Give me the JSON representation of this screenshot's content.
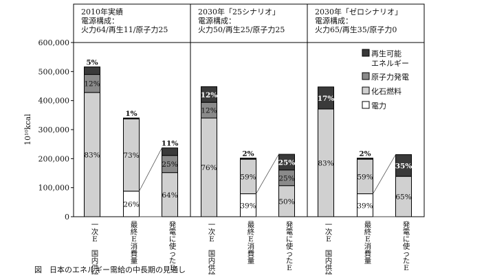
{
  "chart_data": {
    "type": "bar",
    "stacked": true,
    "ylabel": "10¹⁰kcal",
    "ylim": [
      0,
      600000
    ],
    "yticks": [
      0,
      100000,
      200000,
      300000,
      400000,
      500000,
      600000
    ],
    "ytick_labels": [
      "0",
      "100,000",
      "200,000",
      "300,000",
      "400,000",
      "500,000",
      "600,000"
    ],
    "legend_position": "top-right",
    "legend": [
      {
        "key": "renewable",
        "label_lines": [
          "再生可能",
          "エネルギー"
        ],
        "color": "#3a3a3a"
      },
      {
        "key": "nuclear",
        "label_lines": [
          "原子力発電"
        ],
        "color": "#8a8a8a"
      },
      {
        "key": "fossil",
        "label_lines": [
          "化石燃料"
        ],
        "color": "#d0d0d0"
      },
      {
        "key": "electricity",
        "label_lines": [
          "電力"
        ],
        "color": "#ffffff"
      }
    ],
    "categories": [
      "一次E国内供給",
      "最終E消費量",
      "発電に使ったE"
    ],
    "category_labels": [
      [
        "一",
        "次",
        "E",
        "",
        "国",
        "内",
        "供",
        "給"
      ],
      [
        "最",
        "終",
        "E",
        "消",
        "費",
        "量"
      ],
      [
        "発",
        "電",
        "に",
        "使",
        "っ",
        "た",
        "E"
      ]
    ],
    "scenarios": [
      {
        "header_lines": [
          "2010年実績",
          "電源構成：",
          "火力64/再生11/原子力25"
        ],
        "bars": [
          {
            "segments": [
              {
                "key": "fossil",
                "value": 428000,
                "label": "83%"
              },
              {
                "key": "nuclear",
                "value": 62000,
                "label": "12%"
              },
              {
                "key": "renewable",
                "value": 26000,
                "label": "5%"
              }
            ]
          },
          {
            "segments": [
              {
                "key": "electricity",
                "value": 88000,
                "label": "26%"
              },
              {
                "key": "fossil",
                "value": 249000,
                "label": "73%"
              },
              {
                "key": "renewable",
                "value": 3000,
                "label": "1%"
              }
            ]
          },
          {
            "segments": [
              {
                "key": "fossil",
                "value": 152000,
                "label": "64%"
              },
              {
                "key": "nuclear",
                "value": 59000,
                "label": "25%"
              },
              {
                "key": "renewable",
                "value": 26000,
                "label": "11%"
              }
            ]
          }
        ]
      },
      {
        "header_lines": [
          "2030年「25シナリオ」",
          "電源構成：",
          "火力50/再生25/原子力25"
        ],
        "bars": [
          {
            "segments": [
              {
                "key": "fossil",
                "value": 340000,
                "label": "76%"
              },
              {
                "key": "nuclear",
                "value": 54000,
                "label": "12%"
              },
              {
                "key": "renewable",
                "value": 54000,
                "label": "12%"
              }
            ]
          },
          {
            "segments": [
              {
                "key": "electricity",
                "value": 79000,
                "label": "39%"
              },
              {
                "key": "fossil",
                "value": 119000,
                "label": "59%"
              },
              {
                "key": "renewable",
                "value": 4000,
                "label": "2%"
              }
            ]
          },
          {
            "segments": [
              {
                "key": "fossil",
                "value": 107000,
                "label": "50%"
              },
              {
                "key": "nuclear",
                "value": 54000,
                "label": "25%"
              },
              {
                "key": "renewable",
                "value": 54000,
                "label": "25%"
              }
            ]
          }
        ]
      },
      {
        "header_lines": [
          "2030年「ゼロシナリオ」",
          "電源構成：",
          "火力65/再生35/原子力0"
        ],
        "bars": [
          {
            "segments": [
              {
                "key": "fossil",
                "value": 371000,
                "label": "83%"
              },
              {
                "key": "renewable",
                "value": 76000,
                "label": "17%"
              }
            ]
          },
          {
            "segments": [
              {
                "key": "electricity",
                "value": 79000,
                "label": "39%"
              },
              {
                "key": "fossil",
                "value": 119000,
                "label": "59%"
              },
              {
                "key": "renewable",
                "value": 4000,
                "label": "2%"
              }
            ]
          },
          {
            "segments": [
              {
                "key": "fossil",
                "value": 139000,
                "label": "65%"
              },
              {
                "key": "renewable",
                "value": 75000,
                "label": "35%"
              }
            ]
          }
        ]
      }
    ]
  },
  "caption": "図　日本のエネルギー需給の中長期の見通し"
}
